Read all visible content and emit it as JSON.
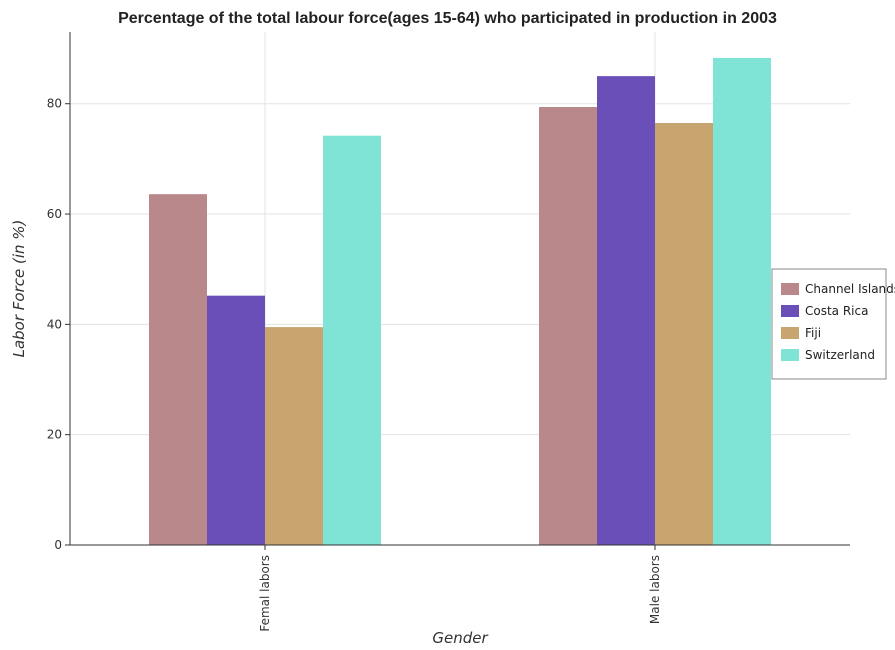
{
  "title": "Percentage of the total labour force(ages 15-64) who participated in production in 2003",
  "chart_data": {
    "type": "bar",
    "categories": [
      "Femal labors",
      "Male labors"
    ],
    "series": [
      {
        "name": "Channel Islands",
        "color": "#b8888a",
        "values": [
          63.6,
          79.4
        ]
      },
      {
        "name": "Costa Rica",
        "color": "#6a4fb8",
        "values": [
          45.2,
          85.0
        ]
      },
      {
        "name": "Fiji",
        "color": "#c8a46e",
        "values": [
          39.5,
          76.5
        ]
      },
      {
        "name": "Switzerland",
        "color": "#7fe3d6",
        "values": [
          74.2,
          88.3
        ]
      }
    ],
    "xlabel": "Gender",
    "ylabel": "Labor Force (in %)",
    "ylim": [
      0,
      93
    ],
    "yticks": [
      0,
      20,
      40,
      60,
      80
    ],
    "grid": true,
    "legend_position": "right"
  }
}
